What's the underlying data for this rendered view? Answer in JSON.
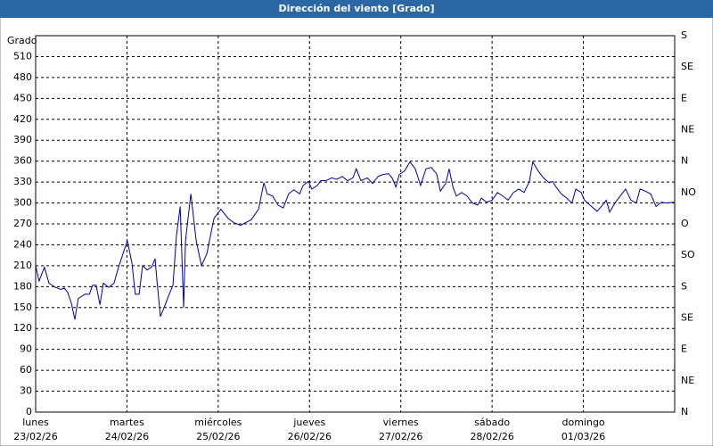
{
  "chart_data": {
    "type": "line",
    "title": "Dirección del viento [Grado]",
    "y_label": "Grado",
    "color": "#0000a0",
    "grid": true,
    "xlim": [
      0,
      168
    ],
    "xticks": [
      {
        "value": 0,
        "label": "lunes"
      },
      {
        "value": 24,
        "label": "martes"
      },
      {
        "value": 48,
        "label": "miércoles"
      },
      {
        "value": 72,
        "label": "jueves"
      },
      {
        "value": 96,
        "label": "viernes"
      },
      {
        "value": 120,
        "label": "sábado"
      },
      {
        "value": 144,
        "label": "domingo"
      }
    ],
    "xtick_dates": [
      "23/02/26",
      "24/02/26",
      "25/02/26",
      "26/02/26",
      "27/02/26",
      "28/02/26",
      "01/03/26"
    ],
    "ylim": [
      0,
      540
    ],
    "yticks": [
      0,
      30,
      60,
      90,
      120,
      150,
      180,
      210,
      240,
      270,
      300,
      330,
      360,
      390,
      420,
      450,
      480,
      510
    ],
    "y2lim": [
      0,
      540
    ],
    "y2ticks": [
      {
        "value": 0,
        "label": "N"
      },
      {
        "value": 45,
        "label": "NE"
      },
      {
        "value": 90,
        "label": "E"
      },
      {
        "value": 135,
        "label": "SE"
      },
      {
        "value": 180,
        "label": "S"
      },
      {
        "value": 225,
        "label": "SO"
      },
      {
        "value": 270,
        "label": "O"
      },
      {
        "value": 315,
        "label": "NO"
      },
      {
        "value": 360,
        "label": "N"
      },
      {
        "value": 405,
        "label": "NE"
      },
      {
        "value": 450,
        "label": "E"
      },
      {
        "value": 495,
        "label": "SE"
      },
      {
        "value": 540,
        "label": "S"
      }
    ],
    "x": [
      0,
      0.9,
      2.3,
      3.5,
      5.2,
      6.6,
      7.5,
      8.4,
      9.4,
      10.3,
      11.2,
      12.9,
      14.1,
      15,
      15.9,
      16.9,
      17.8,
      19.2,
      20.6,
      21.8,
      24.1,
      25.3,
      26.2,
      27.2,
      28.1,
      29.3,
      30.5,
      31.4,
      31.9,
      32.8,
      34.2,
      35.1,
      36.1,
      37,
      38,
      38.9,
      39.4,
      40.8,
      42.2,
      43.6,
      45,
      46.4,
      46.9,
      48.7,
      50.6,
      52,
      53.9,
      55.3,
      56.7,
      58.6,
      60,
      60.9,
      62.3,
      63.7,
      65.1,
      66.5,
      67.9,
      69.4,
      70.3,
      71.7,
      72.6,
      74,
      75,
      76.4,
      77.8,
      79.2,
      80.6,
      82,
      83.4,
      84.3,
      85.5,
      87.2,
      88.6,
      90,
      91.4,
      92.8,
      93.7,
      94.7,
      95.6,
      97,
      98.4,
      99.8,
      101.2,
      102.6,
      104,
      105.4,
      106.4,
      107.8,
      108.7,
      109.7,
      110.6,
      112,
      113.4,
      114.8,
      116.2,
      117.2,
      118.6,
      120,
      121.4,
      122.8,
      124.2,
      125.6,
      127,
      128.4,
      129.8,
      130.7,
      132.1,
      133.5,
      135,
      135.9,
      136.8,
      138.2,
      139.6,
      141,
      142,
      143.4,
      144.3,
      145.7,
      147.6,
      149,
      150,
      150.9,
      152.3,
      153.7,
      155.1,
      156.5,
      157.9,
      158.9,
      160.3,
      161.7,
      163.1,
      164.5,
      165.9,
      167.8
    ],
    "values": [
      210,
      188,
      208,
      185,
      179,
      176,
      178,
      172,
      156,
      133,
      163,
      169,
      169,
      182,
      182,
      154,
      185,
      179,
      185,
      208,
      246,
      214,
      169,
      169,
      210,
      204,
      208,
      220,
      188,
      137,
      156,
      169,
      182,
      252,
      295,
      150,
      246,
      313,
      246,
      210,
      227,
      265,
      278,
      291,
      278,
      272,
      268,
      272,
      276,
      291,
      329,
      313,
      310,
      297,
      293,
      313,
      319,
      313,
      325,
      331,
      320,
      325,
      332,
      332,
      336,
      334,
      338,
      332,
      336,
      349,
      332,
      336,
      328,
      338,
      341,
      342,
      336,
      323,
      341,
      346,
      359,
      349,
      325,
      349,
      351,
      342,
      317,
      328,
      349,
      323,
      310,
      315,
      310,
      300,
      297,
      307,
      301,
      304,
      315,
      310,
      304,
      315,
      320,
      315,
      331,
      359,
      346,
      336,
      329,
      331,
      323,
      313,
      307,
      300,
      320,
      315,
      304,
      297,
      288,
      297,
      304,
      287,
      300,
      310,
      320,
      304,
      300,
      320,
      317,
      313,
      295,
      301,
      300,
      301
    ]
  }
}
